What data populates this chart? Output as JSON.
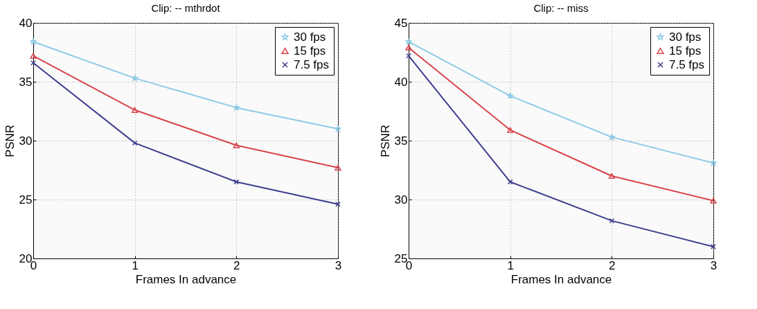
{
  "chart_data": [
    {
      "type": "line",
      "title": "Clip: -- mthrdot",
      "xlabel": "Frames In advance",
      "ylabel": "PSNR",
      "x": [
        0,
        1,
        2,
        3
      ],
      "xlim": [
        0,
        3
      ],
      "xticks": [
        0,
        1,
        2,
        3
      ],
      "ylim": [
        20,
        40
      ],
      "yticks": [
        20,
        25,
        30,
        35,
        40
      ],
      "grid": true,
      "legend": "top right",
      "series": [
        {
          "name": "30 fps",
          "color": "#8ecae6",
          "marker": "star",
          "values": [
            38.4,
            35.3,
            32.8,
            31.0
          ]
        },
        {
          "name": "15 fps",
          "color": "#d9434a",
          "marker": "triangle",
          "values": [
            37.2,
            32.6,
            29.6,
            27.7
          ]
        },
        {
          "name": "7.5 fps",
          "color": "#3d3d8f",
          "marker": "cross",
          "values": [
            36.6,
            29.8,
            26.5,
            24.6
          ]
        }
      ]
    },
    {
      "type": "line",
      "title": "Clip: -- miss",
      "xlabel": "Frames In advance",
      "ylabel": "PSNR",
      "x": [
        0,
        1,
        2,
        3
      ],
      "xlim": [
        0,
        3
      ],
      "xticks": [
        0,
        1,
        2,
        3
      ],
      "ylim": [
        25,
        45
      ],
      "yticks": [
        25,
        30,
        35,
        40,
        45
      ],
      "grid": true,
      "legend": "top right",
      "series": [
        {
          "name": "30 fps",
          "color": "#8ecae6",
          "marker": "star",
          "values": [
            43.4,
            38.8,
            35.3,
            33.1
          ]
        },
        {
          "name": "15 fps",
          "color": "#d9434a",
          "marker": "triangle",
          "values": [
            42.9,
            35.9,
            32.0,
            29.9
          ]
        },
        {
          "name": "7.5 fps",
          "color": "#3d3d8f",
          "marker": "cross",
          "values": [
            42.2,
            31.5,
            28.2,
            26.0
          ]
        }
      ]
    }
  ]
}
